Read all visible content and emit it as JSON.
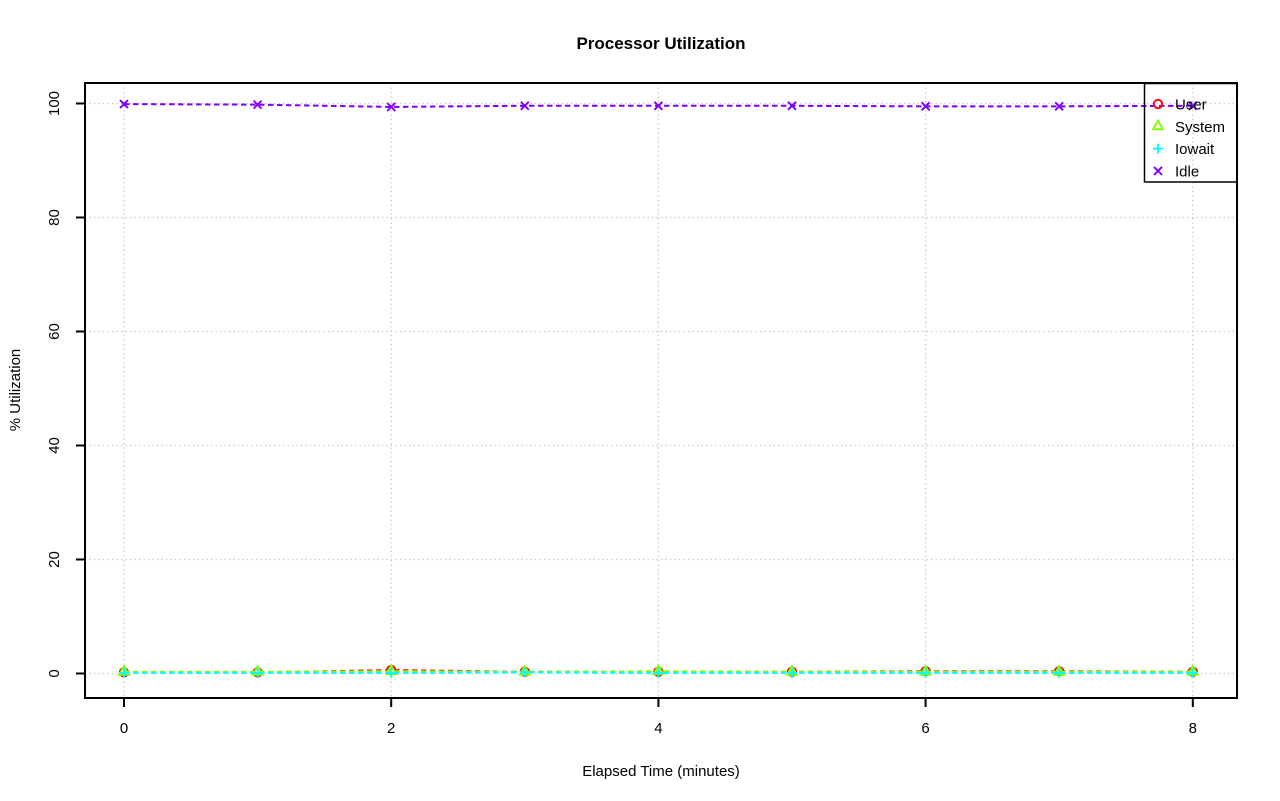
{
  "chart_data": {
    "type": "line",
    "title": "Processor Utilization",
    "xlabel": "Elapsed Time (minutes)",
    "ylabel": "% Utilization",
    "x": [
      0,
      1,
      2,
      3,
      4,
      5,
      6,
      7,
      8
    ],
    "x_ticks": [
      0,
      2,
      4,
      6,
      8
    ],
    "y_ticks": [
      0,
      20,
      40,
      60,
      80,
      100
    ],
    "xlim": [
      -0.3,
      8.33
    ],
    "ylim": [
      -4.3,
      103.6
    ],
    "grid": true,
    "line_style": "dashed",
    "legend_position": "top-right",
    "series": [
      {
        "name": "User",
        "color": "#FF0000",
        "marker": "circle",
        "values": [
          0.2,
          0.2,
          0.6,
          0.3,
          0.3,
          0.3,
          0.4,
          0.4,
          0.3
        ]
      },
      {
        "name": "System",
        "color": "#80FF00",
        "marker": "triangle",
        "values": [
          0.3,
          0.3,
          0.4,
          0.3,
          0.4,
          0.3,
          0.3,
          0.3,
          0.3
        ]
      },
      {
        "name": "Iowait",
        "color": "#00FFFF",
        "marker": "plus",
        "values": [
          0.1,
          0.1,
          0.1,
          0.2,
          0.1,
          0.1,
          0.1,
          0.1,
          0.1
        ]
      },
      {
        "name": "Idle",
        "color": "#8000FF",
        "marker": "x",
        "values": [
          99.9,
          99.8,
          99.4,
          99.6,
          99.6,
          99.6,
          99.5,
          99.5,
          99.6
        ]
      }
    ]
  },
  "colors": {
    "background": "#FFFFFF",
    "axis": "#000000",
    "grid": "#C4C4C4",
    "text": "#000000"
  }
}
